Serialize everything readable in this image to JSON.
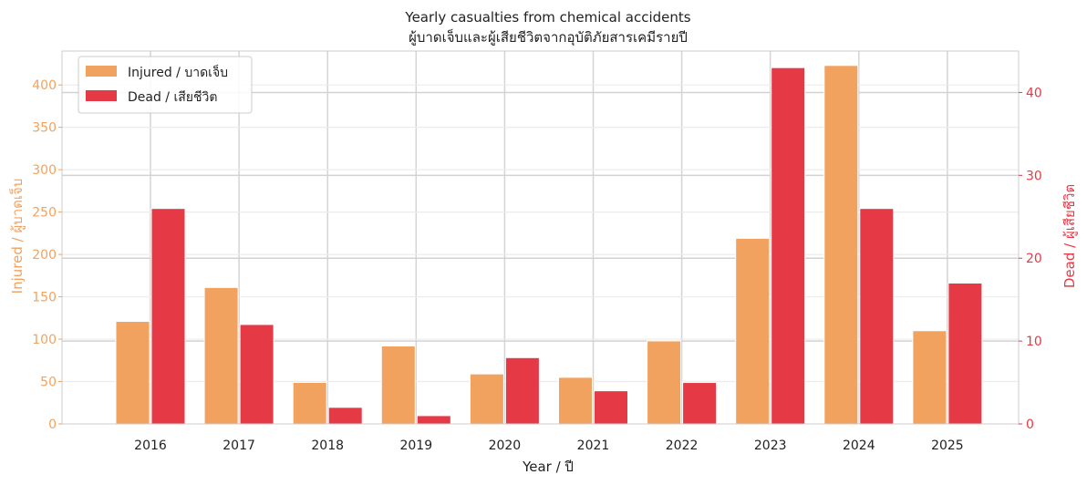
{
  "chart_data": {
    "type": "bar",
    "title": "Yearly casualties from chemical accidents",
    "subtitle": "ผู้บาดเจ็บและผู้เสียชีวิตจากอุบัติภัยสารเคมีรายปี",
    "xlabel": "Year / ปี",
    "ylabel_left": "Injured / ผู้บาดเจ็บ",
    "ylabel_right": "Dead / ผู้เสียชีวิต",
    "categories": [
      "2016",
      "2017",
      "2018",
      "2019",
      "2020",
      "2021",
      "2022",
      "2023",
      "2024",
      "2025"
    ],
    "series": [
      {
        "name": "Injured / บาดเจ็บ",
        "axis": "left",
        "color": "#F2A25F",
        "values": [
          121,
          161,
          49,
          92,
          59,
          55,
          98,
          219,
          423,
          110
        ]
      },
      {
        "name": "Dead / เสียชีวิต",
        "axis": "right",
        "color": "#E63946",
        "values": [
          26,
          12,
          2,
          1,
          8,
          4,
          5,
          43,
          26,
          17
        ]
      }
    ],
    "ylim_left": [
      0,
      440
    ],
    "yticks_left": [
      0,
      50,
      100,
      150,
      200,
      250,
      300,
      350,
      400
    ],
    "ylim_right": [
      0,
      45
    ],
    "yticks_right": [
      0,
      10,
      20,
      30,
      40
    ],
    "left_axis_color": "#F2A25F",
    "right_axis_color": "#E63946",
    "grid": true,
    "legend_position": "top-left"
  }
}
